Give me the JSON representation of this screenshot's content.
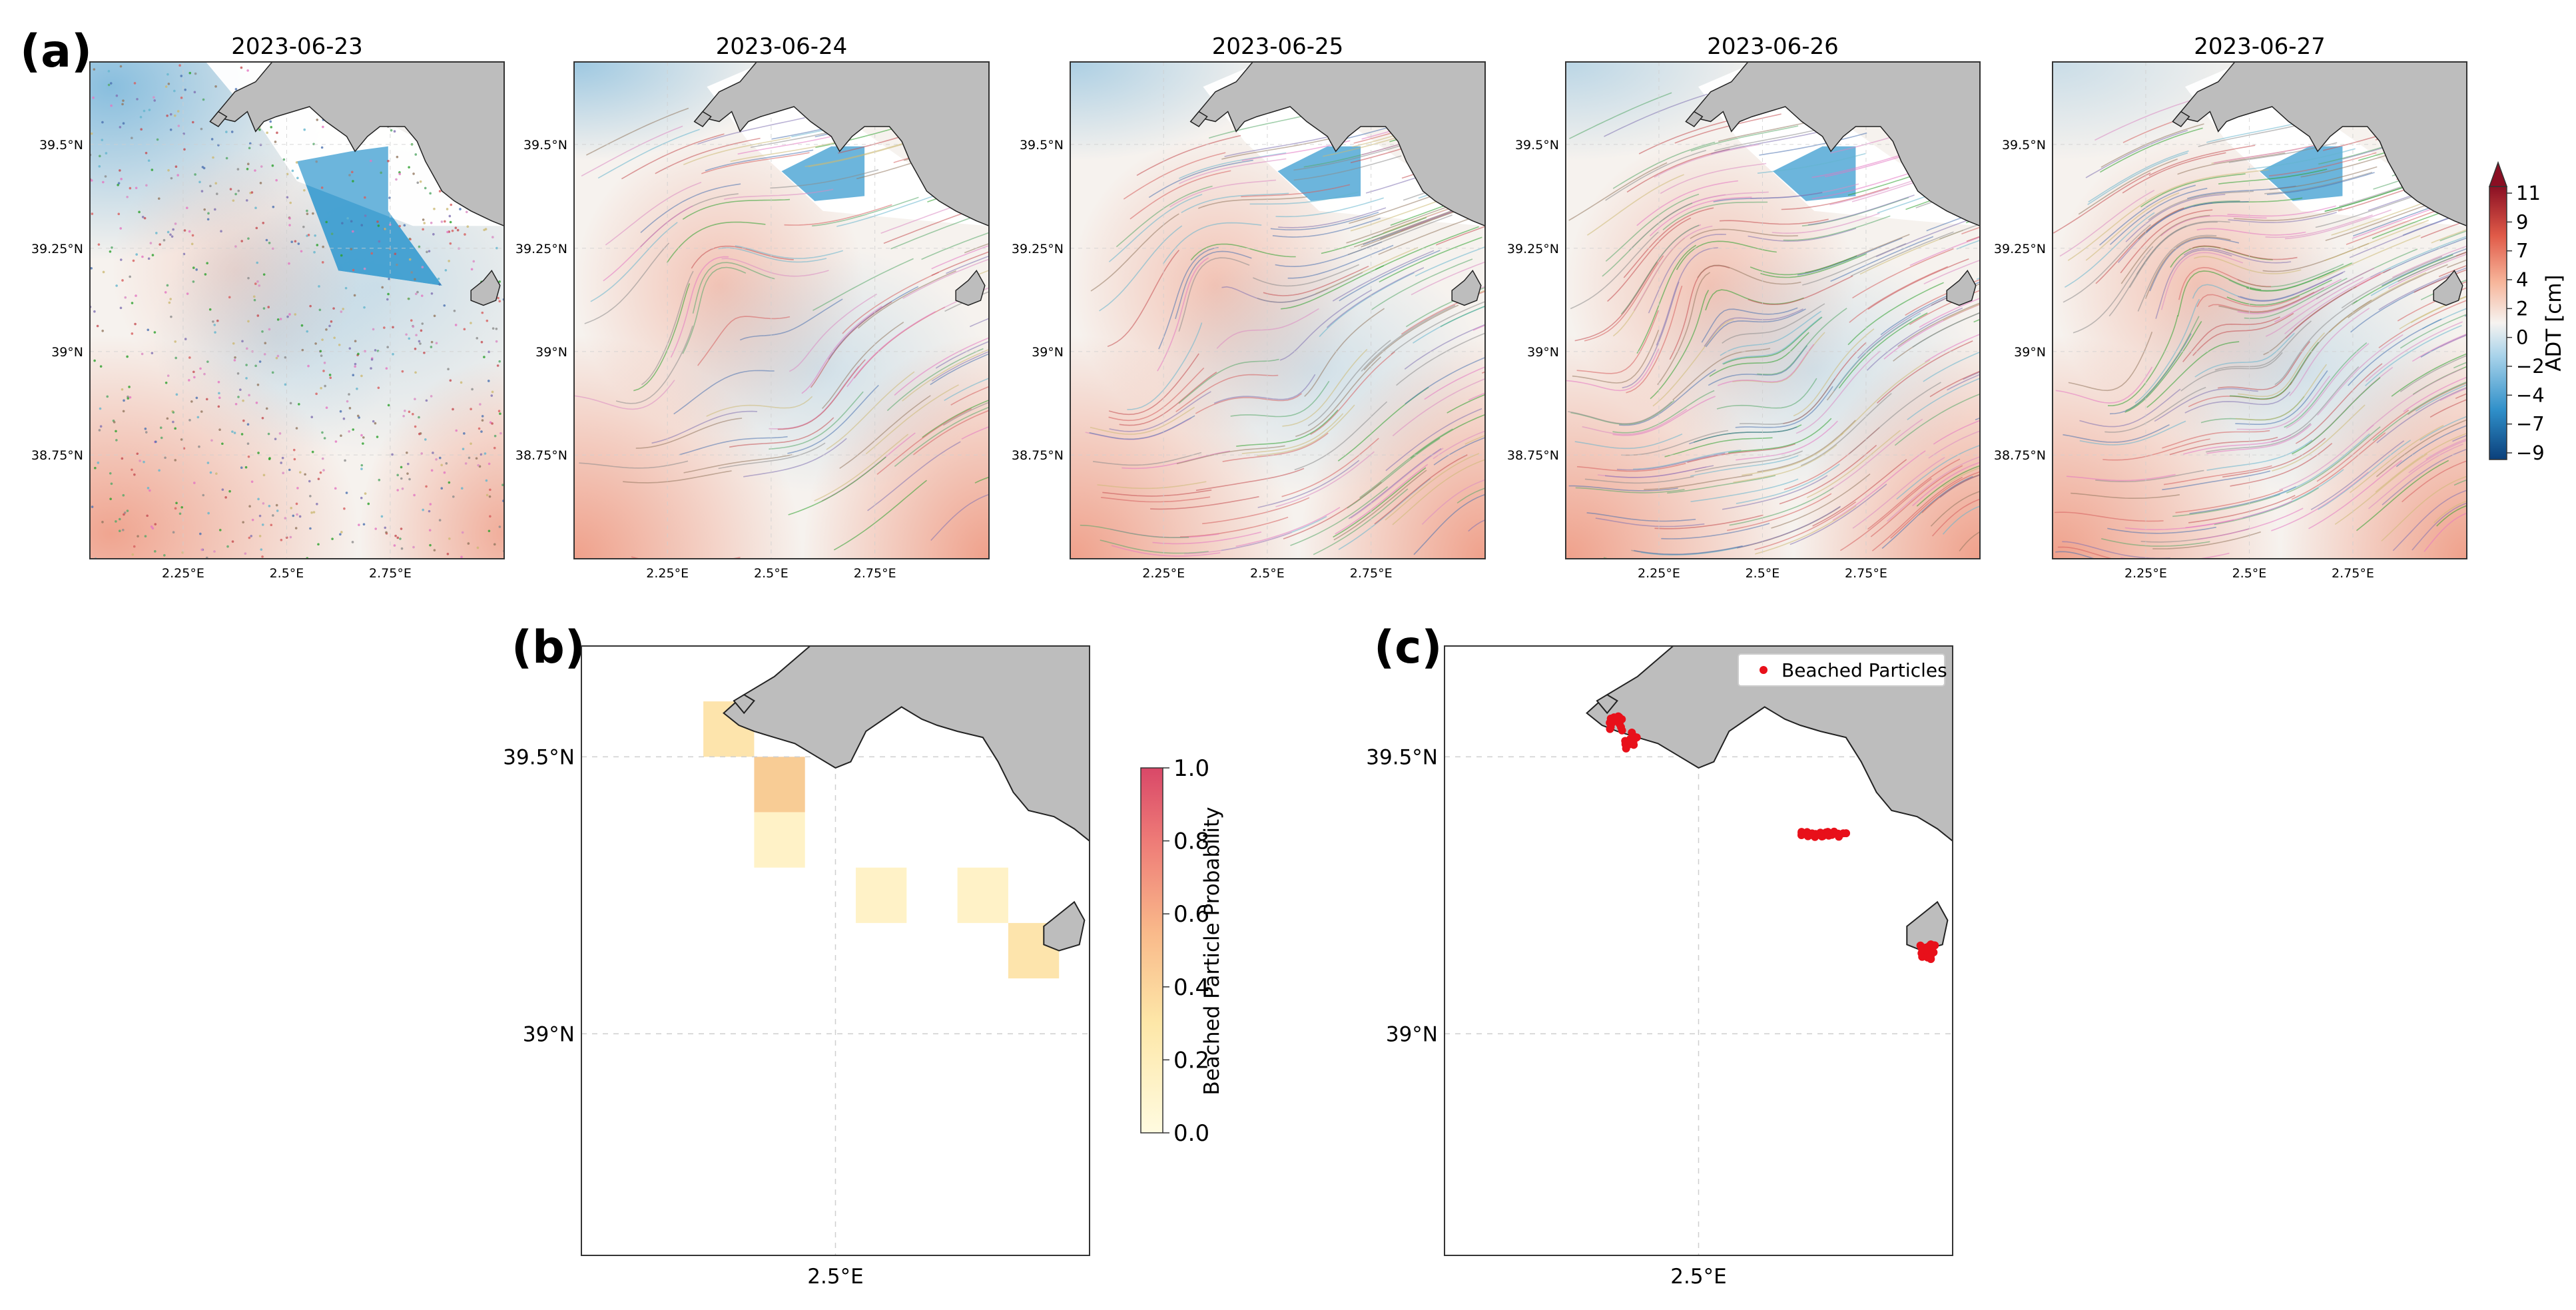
{
  "panel_letters": {
    "a": "(a)",
    "b": "(b)",
    "c": "(c)"
  },
  "colors": {
    "land": "#bdbdbd",
    "coast": "#222222",
    "cold": "#2f8fc9",
    "warm": "#f08a6a",
    "neutral": "#f6f2ee",
    "beached": "#e8101a",
    "grid": "#cfcfcf",
    "frame": "#333333"
  },
  "snapshots": {
    "dates": [
      "2023-06-23",
      "2023-06-24",
      "2023-06-25",
      "2023-06-26",
      "2023-06-27"
    ],
    "trajectory_density": [
      0.05,
      0.45,
      0.65,
      0.85,
      1.0
    ],
    "lat_ticks": [
      "39.5°N",
      "39.25°N",
      "39°N",
      "38.75°N"
    ],
    "lon_ticks": [
      "2.25°E",
      "2.5°E",
      "2.75°E"
    ]
  },
  "adt_colorbar": {
    "label": "ADT [cm]",
    "ticks": [
      "11",
      "9",
      "7",
      "4",
      "2",
      "0",
      "−2",
      "−4",
      "−7",
      "−9"
    ],
    "range": [
      -10,
      12
    ]
  },
  "panel_b": {
    "lat_ticks": [
      "39.5°N",
      "39°N"
    ],
    "lon_ticks": [
      "2.5°E"
    ],
    "colorbar_label": "Beached Particle Probability",
    "colorbar_ticks": [
      "1.0",
      "0.8",
      "0.6",
      "0.4",
      "0.2",
      "0.0"
    ],
    "probability_cells": [
      {
        "lon": 2.29,
        "lat": 39.55,
        "p": 0.18
      },
      {
        "lon": 2.39,
        "lat": 39.45,
        "p": 0.38
      },
      {
        "lon": 2.39,
        "lat": 39.35,
        "p": 0.12
      },
      {
        "lon": 2.59,
        "lat": 39.25,
        "p": 0.15
      },
      {
        "lon": 2.79,
        "lat": 39.25,
        "p": 0.15
      },
      {
        "lon": 2.89,
        "lat": 39.15,
        "p": 0.22
      }
    ]
  },
  "panel_c": {
    "lat_ticks": [
      "39.5°N",
      "39°N"
    ],
    "lon_ticks": [
      "2.5°E"
    ],
    "legend_label": "Beached Particles",
    "beached_clusters": [
      {
        "lon": 2.34,
        "lat": 39.56,
        "count": 14
      },
      {
        "lon": 2.37,
        "lat": 39.53,
        "count": 12
      },
      {
        "lon": 2.75,
        "lat": 39.36,
        "count": 30
      },
      {
        "lon": 2.95,
        "lat": 39.15,
        "count": 22
      }
    ]
  }
}
